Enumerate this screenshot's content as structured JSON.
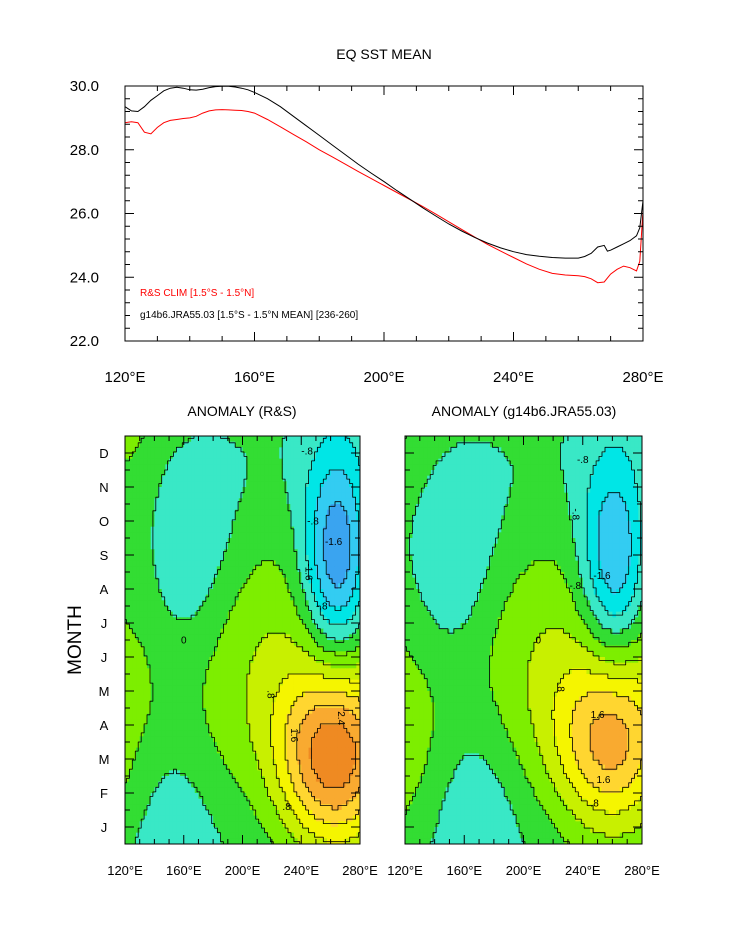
{
  "chart_data": [
    {
      "type": "line",
      "title": "EQ SST MEAN",
      "xlabel": "",
      "ylabel": "",
      "xlim": [
        120,
        280
      ],
      "ylim": [
        22,
        30
      ],
      "x_ticks": [
        120,
        160,
        200,
        240,
        280
      ],
      "x_tick_labels": [
        "120°E",
        "160°E",
        "200°E",
        "240°E",
        "280°E"
      ],
      "y_ticks": [
        22,
        24,
        26,
        28,
        30
      ],
      "y_tick_labels": [
        "22.0",
        "24.0",
        "26.0",
        "28.0",
        "30.0"
      ],
      "grid": false,
      "legend": [
        "R&S CLIM [1.5°S - 1.5°N]",
        "g14b6.JRA55.03 [1.5°S - 1.5°N MEAN] [236-260]"
      ],
      "legend_position": "bottom-left",
      "series": [
        {
          "name": "g14b6.JRA55.03 [1.5°S - 1.5°N MEAN] [236-260]",
          "color": "#000000",
          "x": [
            120,
            122,
            124,
            126,
            128,
            130,
            132,
            134,
            136,
            138,
            140,
            142,
            144,
            146,
            148,
            150,
            152,
            154,
            156,
            158,
            160,
            164,
            168,
            172,
            176,
            180,
            184,
            188,
            192,
            196,
            200,
            204,
            208,
            212,
            216,
            220,
            224,
            228,
            232,
            236,
            240,
            244,
            248,
            252,
            256,
            260,
            262,
            264,
            266,
            268,
            269,
            270,
            272,
            274,
            276,
            278,
            279,
            280
          ],
          "y": [
            29.35,
            29.22,
            29.2,
            29.35,
            29.55,
            29.7,
            29.85,
            29.93,
            29.96,
            29.93,
            29.88,
            29.87,
            29.9,
            29.95,
            29.98,
            29.99,
            29.99,
            29.97,
            29.93,
            29.88,
            29.8,
            29.6,
            29.35,
            29.05,
            28.75,
            28.45,
            28.15,
            27.85,
            27.55,
            27.27,
            27.0,
            26.72,
            26.45,
            26.18,
            25.92,
            25.67,
            25.45,
            25.25,
            25.07,
            24.92,
            24.8,
            24.71,
            24.66,
            24.62,
            24.6,
            24.6,
            24.65,
            24.75,
            24.95,
            25.0,
            24.82,
            24.85,
            24.95,
            25.05,
            25.15,
            25.3,
            25.55,
            26.4
          ]
        },
        {
          "name": "R&S CLIM [1.5°S - 1.5°N]",
          "color": "#ff0000",
          "x": [
            120,
            122,
            124,
            126,
            128,
            130,
            132,
            134,
            136,
            138,
            140,
            142,
            144,
            146,
            148,
            150,
            152,
            154,
            156,
            158,
            160,
            164,
            168,
            172,
            176,
            180,
            184,
            188,
            192,
            196,
            200,
            204,
            208,
            212,
            216,
            220,
            224,
            228,
            232,
            236,
            240,
            244,
            248,
            252,
            256,
            260,
            262,
            264,
            266,
            268,
            270,
            272,
            274,
            276,
            278,
            279,
            280
          ],
          "y": [
            28.85,
            28.88,
            28.85,
            28.55,
            28.5,
            28.7,
            28.85,
            28.92,
            28.95,
            28.98,
            29.0,
            29.05,
            29.15,
            29.22,
            29.25,
            29.26,
            29.25,
            29.24,
            29.23,
            29.2,
            29.15,
            28.95,
            28.72,
            28.48,
            28.25,
            28.0,
            27.78,
            27.55,
            27.32,
            27.1,
            26.88,
            26.66,
            26.44,
            26.22,
            25.98,
            25.74,
            25.5,
            25.26,
            25.03,
            24.82,
            24.62,
            24.42,
            24.25,
            24.12,
            24.07,
            24.05,
            24.02,
            23.95,
            23.83,
            23.85,
            24.1,
            24.25,
            24.35,
            24.3,
            24.2,
            24.5,
            26.1
          ]
        }
      ]
    },
    {
      "type": "heatmap",
      "title": "ANOMALY (R&S)",
      "xlabel": "",
      "ylabel": "MONTH",
      "xlim": [
        120,
        280
      ],
      "x_ticks": [
        120,
        160,
        200,
        240,
        280
      ],
      "x_tick_labels": [
        "120°E",
        "160°E",
        "200°E",
        "240°E",
        "280°E"
      ],
      "y_tick_labels": [
        "J",
        "F",
        "M",
        "A",
        "M",
        "J",
        "J",
        "A",
        "S",
        "O",
        "N",
        "D"
      ],
      "contour_interval": 0.4,
      "contour_labels": [
        "-.8",
        "-.8",
        "-1.6",
        "-1.6",
        "-.8",
        "0",
        ".8",
        "1.6",
        "2.4",
        ".8"
      ],
      "features": [
        {
          "kind": "max",
          "lon": 263,
          "month": 3.0,
          "value": 2.6
        },
        {
          "kind": "min",
          "lon": 265,
          "month": 8.8,
          "value": -2.1
        },
        {
          "kind": "min",
          "lon": 162,
          "month": 8.5,
          "value": -0.6
        },
        {
          "kind": "min",
          "lon": 150,
          "month": 1.8,
          "value": -0.55
        },
        {
          "kind": "max",
          "lon": 125,
          "month": 10.5,
          "value": 0.3
        }
      ]
    },
    {
      "type": "heatmap",
      "title": "ANOMALY (g14b6.JRA55.03)",
      "xlabel": "",
      "ylabel": "",
      "xlim": [
        120,
        280
      ],
      "x_ticks": [
        120,
        160,
        200,
        240,
        280
      ],
      "x_tick_labels": [
        "120°E",
        "160°E",
        "200°E",
        "240°E",
        "280°E"
      ],
      "y_tick_labels": [],
      "contour_interval": 0.4,
      "contour_labels": [
        "-.8",
        "-.8",
        "-1.6",
        "-.8",
        "0",
        ".8",
        "1.6",
        "1.6",
        ".8"
      ],
      "features": [
        {
          "kind": "max",
          "lon": 260,
          "month": 3.4,
          "value": 2.0
        },
        {
          "kind": "min",
          "lon": 262,
          "month": 8.7,
          "value": -1.75
        },
        {
          "kind": "min",
          "lon": 150,
          "month": 8.5,
          "value": -0.65
        },
        {
          "kind": "min",
          "lon": 165,
          "month": 2.0,
          "value": -0.6
        },
        {
          "kind": "max",
          "lon": 125,
          "month": 10.5,
          "value": 0.25
        }
      ]
    }
  ],
  "colors": {
    "red_series": "#ff0000",
    "black_series": "#000000",
    "anomaly_levels": [
      "#0f55cc",
      "#2a78e8",
      "#3aa4f0",
      "#33ccf2",
      "#00e6e6",
      "#39e8c6",
      "#33dd33",
      "#7dee00",
      "#c8f000",
      "#f5f500",
      "#ffd630",
      "#f9aa30",
      "#ef8a22",
      "#f06a1c",
      "#ee2a00"
    ]
  }
}
